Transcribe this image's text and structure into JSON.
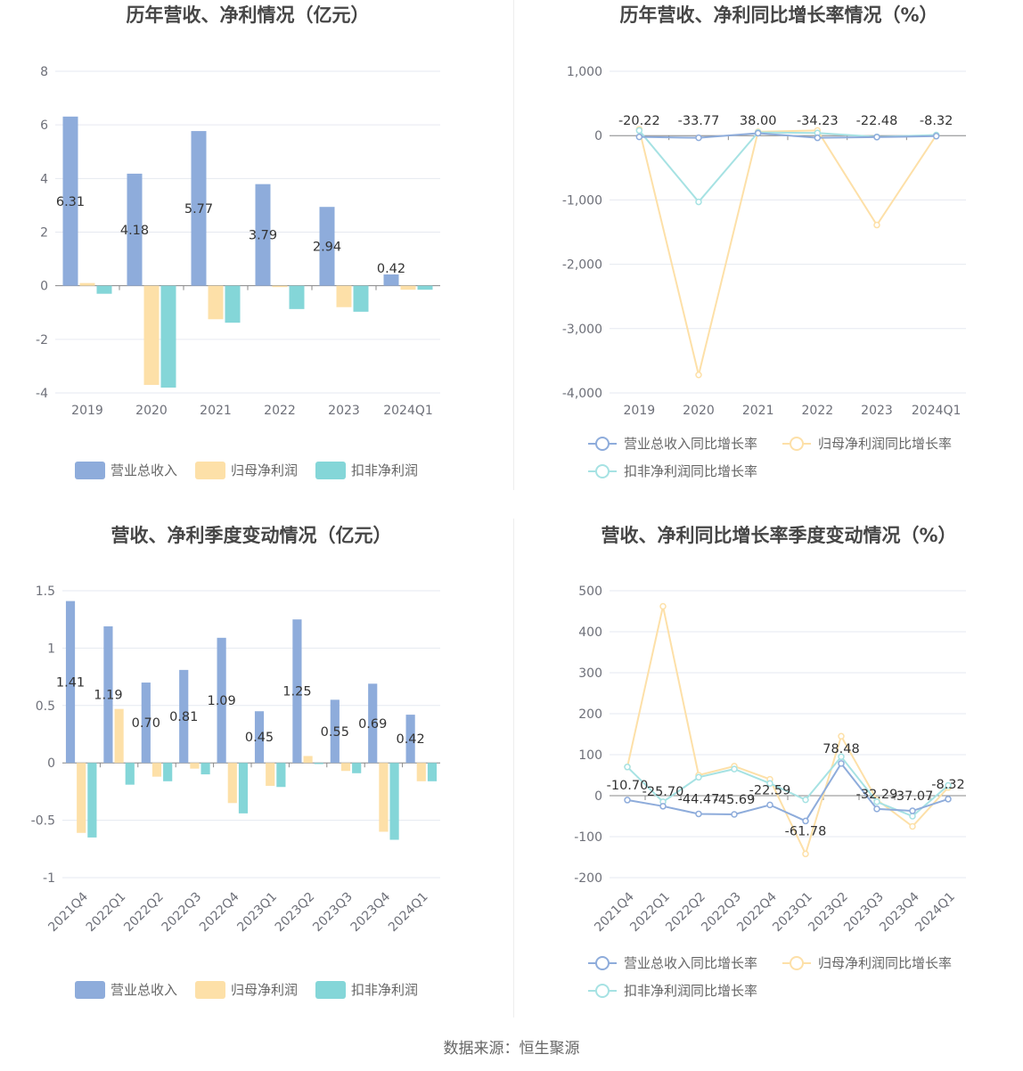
{
  "colors": {
    "revenue": "#8eacdb",
    "net_profit": "#fde0a8",
    "deducted": "#84d6d8",
    "revenue_line": "#8eacdb",
    "net_line": "#fde0a8",
    "deducted_line": "#a6e2e3",
    "grid": "#e6e9f0",
    "axis": "#8a8a8a"
  },
  "legend_labels": {
    "bars": [
      "营业总收入",
      "归母净利润",
      "扣非净利润"
    ],
    "lines": [
      "营业总收入同比增长率",
      "归母净利润同比增长率",
      "扣非净利润同比增长率"
    ]
  },
  "source_text": "数据来源：恒生聚源",
  "chart_data": [
    {
      "type": "bar",
      "title": "历年营收、净利情况（亿元）",
      "categories": [
        "2019",
        "2020",
        "2021",
        "2022",
        "2023",
        "2024Q1"
      ],
      "ylim": [
        -4,
        8
      ],
      "yticks": [
        -4,
        -2,
        0,
        2,
        4,
        6,
        8
      ],
      "ytick_labels": [
        "-4",
        "-2",
        "0",
        "2",
        "4",
        "6",
        "8"
      ],
      "series": [
        {
          "name": "营业总收入",
          "values": [
            6.31,
            4.18,
            5.77,
            3.79,
            2.94,
            0.42
          ],
          "labels": [
            "6.31",
            "4.18",
            "5.77",
            "3.79",
            "2.94",
            "0.42"
          ]
        },
        {
          "name": "归母净利润",
          "values": [
            0.1,
            -3.7,
            -1.25,
            -0.05,
            -0.8,
            -0.15
          ]
        },
        {
          "name": "扣非净利润",
          "values": [
            -0.3,
            -3.8,
            -1.38,
            -0.87,
            -0.97,
            -0.15
          ]
        }
      ],
      "grid": true,
      "legend_position": "bottom"
    },
    {
      "type": "line",
      "title": "历年营收、净利同比增长率情况（%）",
      "categories": [
        "2019",
        "2020",
        "2021",
        "2022",
        "2023",
        "2024Q1"
      ],
      "ylim": [
        -4000,
        1000
      ],
      "yticks": [
        -4000,
        -3000,
        -2000,
        -1000,
        0,
        1000
      ],
      "ytick_labels": [
        "-4,000",
        "-3,000",
        "-2,000",
        "-1,000",
        "0",
        "1,000"
      ],
      "series": [
        {
          "name": "营业总收入同比增长率",
          "values": [
            -20.22,
            -33.77,
            38.0,
            -34.23,
            -22.48,
            -8.32
          ],
          "labels": [
            "-20.22",
            "-33.77",
            "38.00",
            "-34.23",
            "-22.48",
            "-8.32"
          ]
        },
        {
          "name": "归母净利润同比增长率",
          "values": [
            100,
            -3720,
            60,
            80,
            -1390,
            5
          ]
        },
        {
          "name": "扣非净利润同比增长率",
          "values": [
            80,
            -1030,
            50,
            40,
            -20,
            10
          ]
        }
      ],
      "grid": true,
      "legend_position": "bottom"
    },
    {
      "type": "bar",
      "title": "营收、净利季度变动情况（亿元）",
      "categories": [
        "2021Q4",
        "2022Q1",
        "2022Q2",
        "2022Q3",
        "2022Q4",
        "2023Q1",
        "2023Q2",
        "2023Q3",
        "2023Q4",
        "2024Q1"
      ],
      "ylim": [
        -1,
        1.5
      ],
      "yticks": [
        -1,
        -0.5,
        0,
        0.5,
        1,
        1.5
      ],
      "ytick_labels": [
        "-1",
        "-0.5",
        "0",
        "0.5",
        "1",
        "1.5"
      ],
      "series": [
        {
          "name": "营业总收入",
          "values": [
            1.41,
            1.19,
            0.7,
            0.81,
            1.09,
            0.45,
            1.25,
            0.55,
            0.69,
            0.42
          ],
          "labels": [
            "1.41",
            "1.19",
            "0.70",
            "0.81",
            "1.09",
            "0.45",
            "1.25",
            "0.55",
            "0.69",
            "0.42"
          ]
        },
        {
          "name": "归母净利润",
          "values": [
            -0.61,
            0.47,
            -0.12,
            -0.05,
            -0.35,
            -0.2,
            0.06,
            -0.07,
            -0.6,
            -0.16
          ]
        },
        {
          "name": "扣非净利润",
          "values": [
            -0.65,
            -0.19,
            -0.16,
            -0.1,
            -0.44,
            -0.21,
            -0.01,
            -0.09,
            -0.67,
            -0.16
          ]
        }
      ],
      "grid": true,
      "legend_position": "bottom"
    },
    {
      "type": "line",
      "title": "营收、净利同比增长率季度变动情况（%）",
      "categories": [
        "2021Q4",
        "2022Q1",
        "2022Q2",
        "2022Q3",
        "2022Q4",
        "2023Q1",
        "2023Q2",
        "2023Q3",
        "2023Q4",
        "2024Q1"
      ],
      "ylim": [
        -200,
        500
      ],
      "yticks": [
        -200,
        -100,
        0,
        100,
        200,
        300,
        400,
        500
      ],
      "ytick_labels": [
        "-200",
        "-100",
        "0",
        "100",
        "200",
        "300",
        "400",
        "500"
      ],
      "series": [
        {
          "name": "营业总收入同比增长率",
          "values": [
            -10.7,
            -25.7,
            -44.47,
            -45.69,
            -22.59,
            -61.78,
            78.48,
            -32.29,
            -37.07,
            -8.32
          ],
          "labels": [
            "-10.70",
            "-25.70",
            "-44.47",
            "-45.69",
            "-22.59",
            "-61.78",
            "78.48",
            "-32.29",
            "-37.07",
            "-8.32"
          ]
        },
        {
          "name": "归母净利润同比增长率",
          "values": [
            70,
            462,
            50,
            72,
            40,
            -142,
            145,
            -10,
            -75,
            20
          ]
        },
        {
          "name": "扣非净利润同比增长率",
          "values": [
            70,
            -15,
            45,
            65,
            30,
            -10,
            95,
            -15,
            -50,
            25
          ]
        }
      ],
      "grid": true,
      "legend_position": "bottom"
    }
  ]
}
